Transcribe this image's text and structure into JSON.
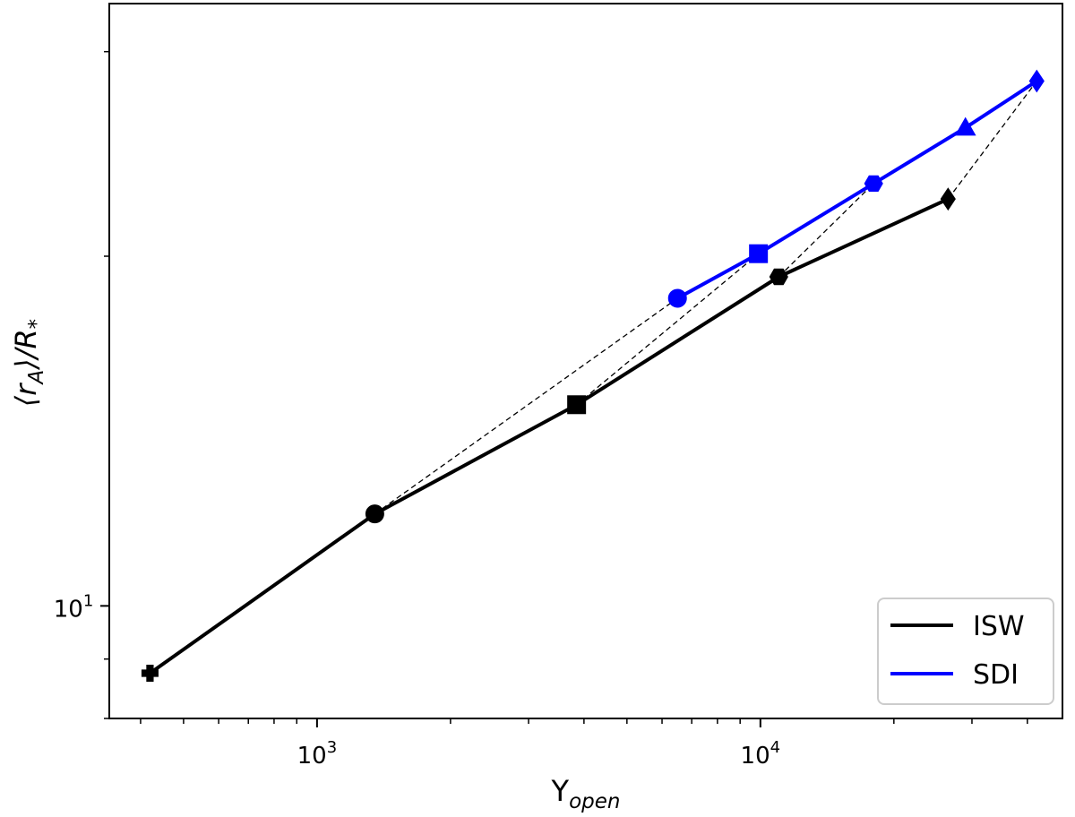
{
  "chart_data": {
    "type": "line",
    "title": "",
    "xlabel": {
      "main": "Y",
      "sub": "open"
    },
    "ylabel": {
      "open": "⟨r",
      "sub": "A",
      "close": "⟩/R",
      "sub2": "*"
    },
    "xscale": "log",
    "yscale": "log",
    "xlim": [
      340,
      48000
    ],
    "ylim": [
      8.0,
      33.0
    ],
    "x_ticks": [
      {
        "value": 1000,
        "base": "10",
        "exp": "3"
      },
      {
        "value": 10000,
        "base": "10",
        "exp": "4"
      }
    ],
    "y_ticks": [
      {
        "value": 10,
        "base": "10",
        "exp": "1"
      }
    ],
    "grid": false,
    "legend_position": "lower-right",
    "series": [
      {
        "name": "ISW",
        "color": "#000000",
        "values": [
          {
            "x": 420,
            "y": 8.75,
            "marker": "plus"
          },
          {
            "x": 1350,
            "y": 12.0,
            "marker": "circle"
          },
          {
            "x": 3850,
            "y": 14.9,
            "marker": "square"
          },
          {
            "x": 11000,
            "y": 19.2,
            "marker": "hexagon"
          },
          {
            "x": 26500,
            "y": 22.4,
            "marker": "diamond"
          }
        ]
      },
      {
        "name": "SDI",
        "color": "#0000ff",
        "values": [
          {
            "x": 6500,
            "y": 18.4,
            "marker": "circle"
          },
          {
            "x": 9900,
            "y": 20.1,
            "marker": "square"
          },
          {
            "x": 18000,
            "y": 23.1,
            "marker": "hexagon"
          },
          {
            "x": 29000,
            "y": 25.8,
            "marker": "triangle"
          },
          {
            "x": 42000,
            "y": 28.3,
            "marker": "diamond"
          }
        ]
      }
    ],
    "connectors": [
      {
        "from": [
          1350,
          12.0
        ],
        "to": [
          6500,
          18.4
        ]
      },
      {
        "from": [
          3850,
          14.9
        ],
        "to": [
          9900,
          20.1
        ]
      },
      {
        "from": [
          11000,
          19.2
        ],
        "to": [
          18000,
          23.1
        ]
      },
      {
        "from": [
          26500,
          22.4
        ],
        "to": [
          42000,
          28.3
        ]
      }
    ]
  }
}
